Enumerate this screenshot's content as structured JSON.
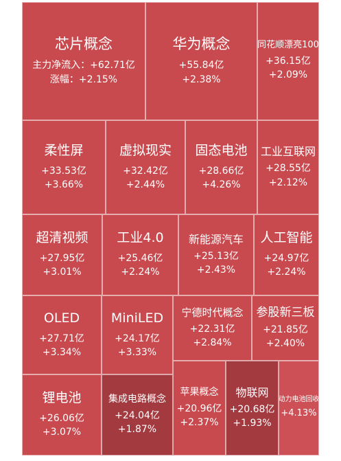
{
  "colors": {
    "normal": "#c84a4f",
    "dark": "#a33a40",
    "light": "#cc5055"
  },
  "tiles": [
    {
      "id": "chip",
      "name": "芯片概念",
      "lines": [
        "主力净流入：+62.71亿",
        "涨幅：+2.15%"
      ],
      "tone": "normal"
    },
    {
      "id": "huawei",
      "name": "华为概念",
      "lines": [
        "+55.84亿",
        "+2.38%"
      ],
      "tone": "normal"
    },
    {
      "id": "ths100",
      "name": "同花顺漂亮100",
      "lines": [
        "+36.15亿",
        "+2.09%"
      ],
      "tone": "normal"
    },
    {
      "id": "flexible-screen",
      "name": "柔性屏",
      "lines": [
        "+33.53亿",
        "+3.66%"
      ],
      "tone": "normal"
    },
    {
      "id": "vr",
      "name": "虚拟现实",
      "lines": [
        "+32.42亿",
        "+2.44%"
      ],
      "tone": "normal"
    },
    {
      "id": "solid-battery",
      "name": "固态电池",
      "lines": [
        "+28.66亿",
        "+4.26%"
      ],
      "tone": "normal"
    },
    {
      "id": "industrial-internet",
      "name": "工业互联网",
      "lines": [
        "+28.55亿",
        "+2.12%"
      ],
      "tone": "normal"
    },
    {
      "id": "uhd-video",
      "name": "超清视频",
      "lines": [
        "+27.95亿",
        "+3.01%"
      ],
      "tone": "normal"
    },
    {
      "id": "industry40",
      "name": "工业4.0",
      "lines": [
        "+25.46亿",
        "+2.24%"
      ],
      "tone": "normal"
    },
    {
      "id": "nev",
      "name": "新能源汽车",
      "lines": [
        "+25.13亿",
        "+2.43%"
      ],
      "tone": "normal"
    },
    {
      "id": "ai",
      "name": "人工智能",
      "lines": [
        "+24.97亿",
        "+2.24%"
      ],
      "tone": "normal"
    },
    {
      "id": "oled",
      "name": "OLED",
      "lines": [
        "+27.71亿",
        "+3.34%"
      ],
      "tone": "normal"
    },
    {
      "id": "miniled",
      "name": "MiniLED",
      "lines": [
        "+24.17亿",
        "+3.33%"
      ],
      "tone": "normal"
    },
    {
      "id": "catl",
      "name": "宁德时代概念",
      "lines": [
        "+22.31亿",
        "+2.84%"
      ],
      "tone": "normal"
    },
    {
      "id": "neeq",
      "name": "参股新三板",
      "lines": [
        "+21.85亿",
        "+2.40%"
      ],
      "tone": "normal"
    },
    {
      "id": "lithium",
      "name": "锂电池",
      "lines": [
        "+26.06亿",
        "+3.07%"
      ],
      "tone": "normal"
    },
    {
      "id": "ic",
      "name": "集成电路概念",
      "lines": [
        "+24.04亿",
        "+1.87%"
      ],
      "tone": "dark"
    },
    {
      "id": "apple",
      "name": "苹果概念",
      "lines": [
        "+20.96亿",
        "+2.37%"
      ],
      "tone": "normal"
    },
    {
      "id": "iot",
      "name": "物联网",
      "lines": [
        "+20.68亿",
        "+1.93%"
      ],
      "tone": "dark"
    },
    {
      "id": "battery-recycle",
      "name": "动力电池回收",
      "lines": [
        "+4.13%"
      ],
      "tone": "light"
    }
  ]
}
